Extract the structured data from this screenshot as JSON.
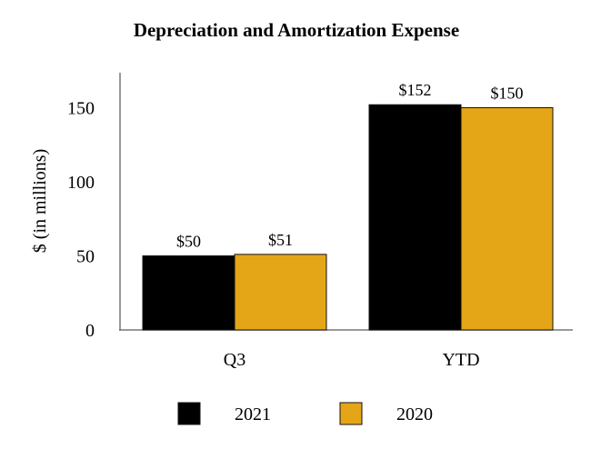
{
  "chart_data": {
    "type": "bar",
    "title": "Depreciation and Amortization Expense",
    "xlabel": "",
    "ylabel": "$ (in millions)",
    "categories": [
      "Q3",
      "YTD"
    ],
    "series": [
      {
        "name": "2021",
        "color": "#000000",
        "values": [
          50,
          152
        ],
        "labels": [
          "$50",
          "$152"
        ]
      },
      {
        "name": "2020",
        "color": "#E4A617",
        "values": [
          51,
          150
        ],
        "labels": [
          "$51",
          "$150"
        ]
      }
    ],
    "yticks": [
      0,
      50,
      100,
      150
    ],
    "ylim": [
      0,
      175
    ],
    "grid": false,
    "legend_position": "bottom"
  }
}
